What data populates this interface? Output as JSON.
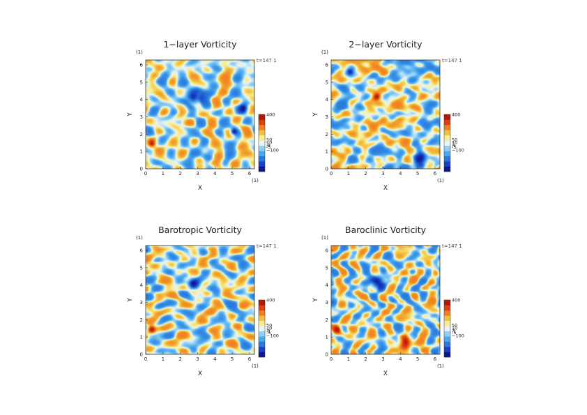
{
  "chart_data": [
    {
      "type": "heatmap",
      "title": "1−layer Vorticity",
      "xlabel": "X",
      "ylabel": "Y",
      "x_unit": "(1)",
      "y_unit": "(1)",
      "xlim": [
        0,
        6.283
      ],
      "ylim": [
        0,
        6.283
      ],
      "x_ticks": [
        "0",
        "1",
        "2",
        "3",
        "4",
        "5",
        "6"
      ],
      "y_ticks": [
        "0",
        "1",
        "2",
        "3",
        "4",
        "5",
        "6"
      ],
      "time_label": "t=147 1",
      "colorbar_labels": [
        "400",
        "50",
        "10",
        "1",
        "-1",
        "-5",
        "−100"
      ],
      "features": [
        {
          "kind": "negative_vortex",
          "x": 2.75,
          "y": 4.2,
          "r": 0.55
        },
        {
          "kind": "positive_vortex",
          "x": 0.35,
          "y": 1.45,
          "r": 0.28
        },
        {
          "kind": "negative_vortex",
          "x": 5.65,
          "y": 3.5,
          "r": 0.3
        },
        {
          "kind": "negative_vortex",
          "x": 5.1,
          "y": 2.15,
          "r": 0.2
        }
      ]
    },
    {
      "type": "heatmap",
      "title": "2−layer Vorticity",
      "xlabel": "X",
      "ylabel": "Y",
      "x_unit": "(1)",
      "y_unit": "(1)",
      "xlim": [
        0,
        6.283
      ],
      "ylim": [
        0,
        6.283
      ],
      "x_ticks": [
        "0",
        "1",
        "2",
        "3",
        "4",
        "5",
        "6"
      ],
      "y_ticks": [
        "0",
        "1",
        "2",
        "3",
        "4",
        "5",
        "6"
      ],
      "time_label": "t=147 1",
      "colorbar_labels": [
        "400",
        "50",
        "10",
        "1",
        "-1",
        "-5",
        "−100"
      ],
      "features": [
        {
          "kind": "positive_vortex",
          "x": 2.65,
          "y": 4.15,
          "r": 0.3
        },
        {
          "kind": "negative_vortex",
          "x": 5.2,
          "y": 0.6,
          "r": 0.45
        },
        {
          "kind": "negative_vortex",
          "x": 1.1,
          "y": 5.6,
          "r": 0.3
        }
      ]
    },
    {
      "type": "heatmap",
      "title": "Barotropic Vorticity",
      "xlabel": "X",
      "ylabel": "Y",
      "x_unit": "(1)",
      "y_unit": "(1)",
      "xlim": [
        0,
        6.283
      ],
      "ylim": [
        0,
        6.283
      ],
      "x_ticks": [
        "0",
        "1",
        "2",
        "3",
        "4",
        "5",
        "6"
      ],
      "y_ticks": [
        "0",
        "1",
        "2",
        "3",
        "4",
        "5",
        "6"
      ],
      "time_label": "t=147 1",
      "colorbar_labels": [
        "400",
        "50",
        "10",
        "1",
        "-1",
        "-5",
        "−100"
      ],
      "features": [
        {
          "kind": "negative_vortex",
          "x": 2.75,
          "y": 4.1,
          "r": 0.35
        },
        {
          "kind": "positive_vortex",
          "x": 0.35,
          "y": 1.45,
          "r": 0.25
        }
      ]
    },
    {
      "type": "heatmap",
      "title": "Baroclinic Vorticity",
      "xlabel": "X",
      "ylabel": "Y",
      "x_unit": "(1)",
      "y_unit": "(1)",
      "xlim": [
        0,
        6.283
      ],
      "ylim": [
        0,
        6.283
      ],
      "x_ticks": [
        "0",
        "1",
        "2",
        "3",
        "4",
        "5",
        "6"
      ],
      "y_ticks": [
        "0",
        "1",
        "2",
        "3",
        "4",
        "5",
        "6"
      ],
      "time_label": "t=147 1",
      "colorbar_labels": [
        "400",
        "50",
        "10",
        "1",
        "-1",
        "-5",
        "−100"
      ],
      "features": [
        {
          "kind": "negative_vortex",
          "x": 2.7,
          "y": 4.15,
          "r": 0.45
        },
        {
          "kind": "positive_vortex",
          "x": 0.35,
          "y": 1.45,
          "r": 0.25
        },
        {
          "kind": "positive_vortex",
          "x": 4.3,
          "y": 0.7,
          "r": 0.4
        }
      ]
    }
  ],
  "colors": {
    "colorbar": [
      "#0a1a8c",
      "#1a40c8",
      "#2a7adc",
      "#4aa8ee",
      "#8fd0f5",
      "#e8f4f8",
      "#f8ee90",
      "#f4c040",
      "#f08020",
      "#e04010",
      "#b01808"
    ]
  }
}
